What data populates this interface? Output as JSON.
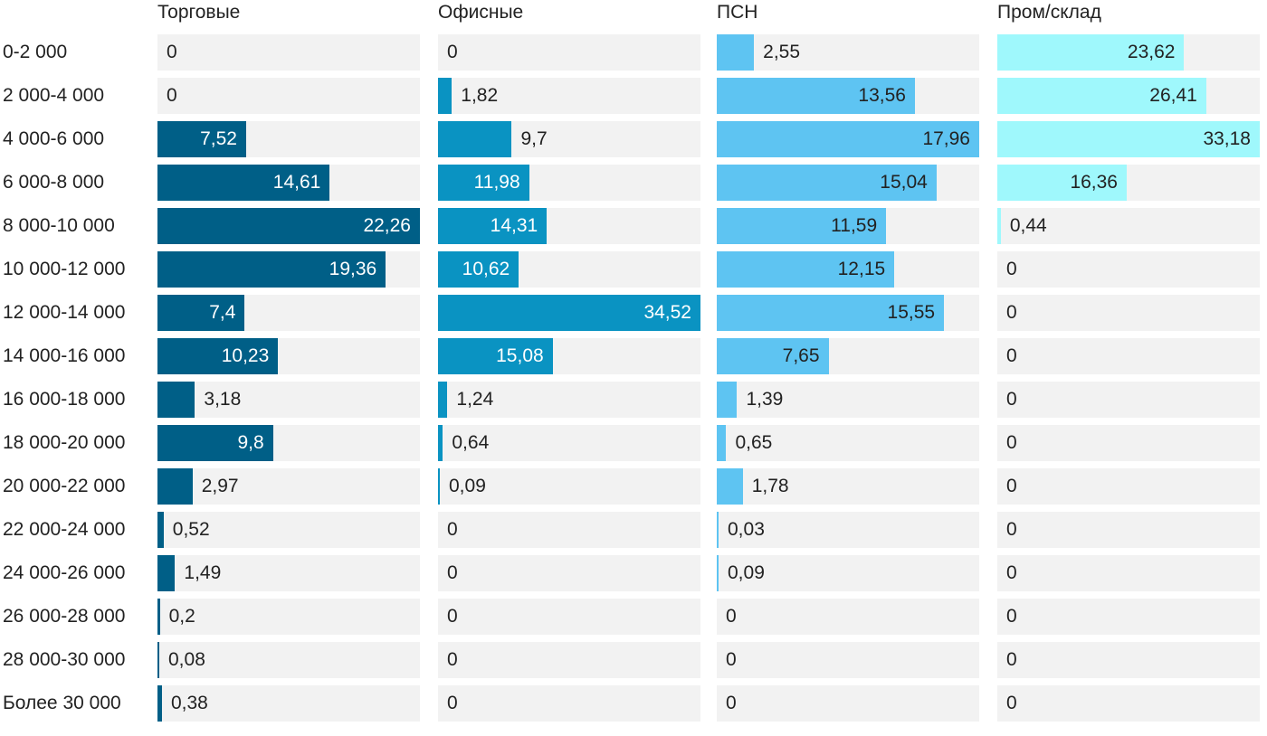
{
  "chart_data": {
    "type": "bar",
    "orientation": "horizontal",
    "layout": "small-multiples",
    "categories": [
      "0-2 000",
      "2 000-4 000",
      "4 000-6 000",
      "6 000-8 000",
      "8 000-10 000",
      "10 000-12 000",
      "12 000-14 000",
      "14 000-16 000",
      "16 000-18 000",
      "18 000-20 000",
      "20 000-22 000",
      "22 000-24 000",
      "24 000-26 000",
      "26 000-28 000",
      "28 000-30 000",
      "Более 30 000"
    ],
    "series": [
      {
        "name": "Торговые",
        "color": "#005f87",
        "label_dark": false,
        "values": [
          0,
          0,
          7.52,
          14.61,
          22.26,
          19.36,
          7.4,
          10.23,
          3.18,
          9.8,
          2.97,
          0.52,
          1.49,
          0.2,
          0.08,
          0.38
        ],
        "labels": [
          "0",
          "0",
          "7,52",
          "14,61",
          "22,26",
          "19,36",
          "7,4",
          "10,23",
          "3,18",
          "9,8",
          "2,97",
          "0,52",
          "1,49",
          "0,2",
          "0,08",
          "0,38"
        ]
      },
      {
        "name": "Офисные",
        "color": "#0a93c2",
        "label_dark": false,
        "values": [
          0,
          1.82,
          9.7,
          11.98,
          14.31,
          10.62,
          34.52,
          15.08,
          1.24,
          0.64,
          0.09,
          0,
          0,
          0,
          0,
          0
        ],
        "labels": [
          "0",
          "1,82",
          "9,7",
          "11,98",
          "14,31",
          "10,62",
          "34,52",
          "15,08",
          "1,24",
          "0,64",
          "0,09",
          "0",
          "0",
          "0",
          "0",
          "0"
        ]
      },
      {
        "name": "ПСН",
        "color": "#5ec4f2",
        "label_dark": true,
        "values": [
          2.55,
          13.56,
          17.96,
          15.04,
          11.59,
          12.15,
          15.55,
          7.65,
          1.39,
          0.65,
          1.78,
          0.03,
          0.09,
          0,
          0,
          0
        ],
        "labels": [
          "2,55",
          "13,56",
          "17,96",
          "15,04",
          "11,59",
          "12,15",
          "15,55",
          "7,65",
          "1,39",
          "0,65",
          "1,78",
          "0,03",
          "0,09",
          "0",
          "0",
          "0"
        ]
      },
      {
        "name": "Пром/склад",
        "color": "#9ff8fc",
        "label_dark": true,
        "values": [
          23.62,
          26.41,
          33.18,
          16.36,
          0.44,
          0,
          0,
          0,
          0,
          0,
          0,
          0,
          0,
          0,
          0,
          0
        ],
        "labels": [
          "23,62",
          "26,41",
          "33,18",
          "16,36",
          "0,44",
          "0",
          "0",
          "0",
          "0",
          "0",
          "0",
          "0",
          "0",
          "0",
          "0",
          "0"
        ]
      }
    ]
  }
}
